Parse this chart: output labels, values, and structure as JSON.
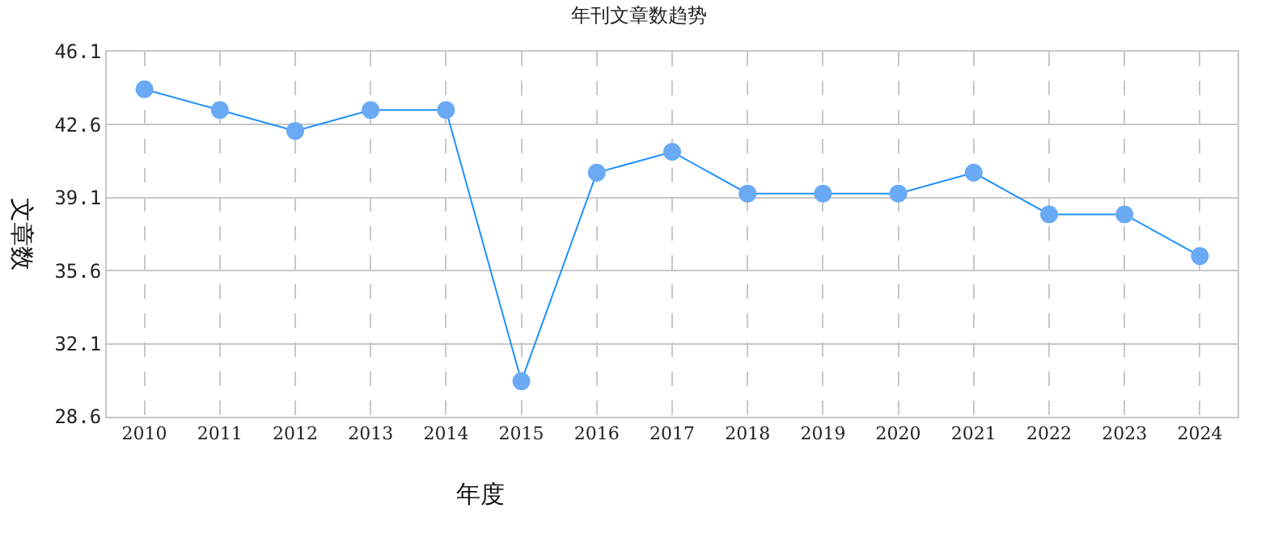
{
  "chart_data": {
    "type": "line",
    "title": "年刊文章数趋势",
    "xlabel": "年度",
    "ylabel": "文章数",
    "categories": [
      "2010",
      "2011",
      "2012",
      "2013",
      "2014",
      "2015",
      "2016",
      "2017",
      "2018",
      "2019",
      "2020",
      "2021",
      "2022",
      "2023",
      "2024"
    ],
    "series": [
      {
        "color": "#1e90ff",
        "values": [
          44.3,
          43.3,
          42.3,
          43.3,
          43.3,
          30.3,
          40.3,
          41.3,
          39.3,
          39.3,
          39.3,
          40.3,
          38.3,
          38.3,
          36.3
        ]
      }
    ],
    "ylim": [
      28.6,
      46.1
    ],
    "yticks": [
      28.6,
      32.1,
      35.6,
      39.1,
      42.6,
      46.1
    ],
    "grid": true,
    "marker": "circle",
    "line_style": "solid"
  }
}
